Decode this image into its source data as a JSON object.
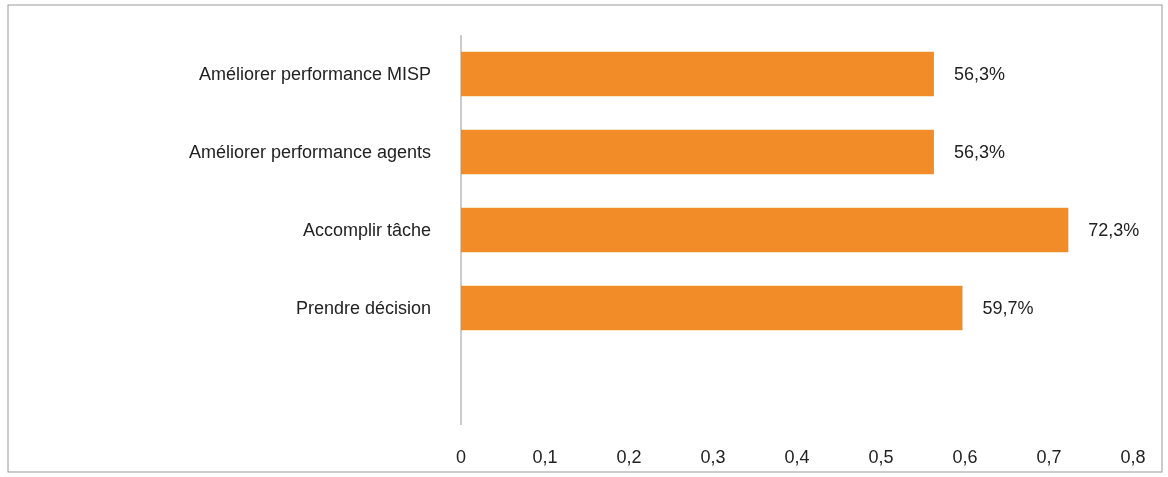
{
  "chart_data": {
    "type": "bar",
    "orientation": "horizontal",
    "categories": [
      "Améliorer performance MISP",
      "Améliorer performance agents",
      "Accomplir tâche",
      "Prendre décision"
    ],
    "values": [
      0.563,
      0.563,
      0.723,
      0.597
    ],
    "value_labels": [
      "56,3%",
      "56,3%",
      "72,3%",
      "59,7%"
    ],
    "color": "#f28c28",
    "xlim": [
      0,
      0.8
    ],
    "xticks": [
      0,
      {
        "value": 0.1,
        "label": "0,1"
      },
      {
        "value": 0.2,
        "label": "0,2"
      },
      {
        "value": 0.3,
        "label": "0,3"
      },
      {
        "value": 0.4,
        "label": "0,4"
      },
      {
        "value": 0.5,
        "label": "0,5"
      },
      {
        "value": 0.6,
        "label": "0,6"
      },
      {
        "value": 0.7,
        "label": "0,7"
      },
      {
        "value": 0.8,
        "label": "0,8"
      }
    ],
    "grid": false
  }
}
